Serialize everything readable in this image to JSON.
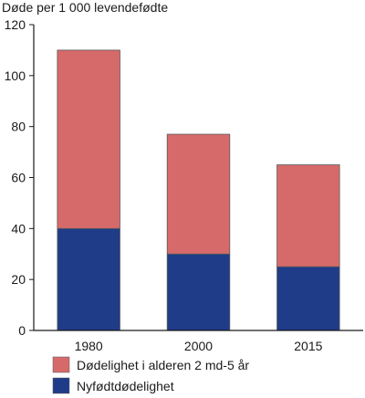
{
  "chart_data": {
    "type": "bar",
    "stacked": true,
    "ylabel": "Døde per 1 000 levendefødte",
    "ylim": [
      0,
      120
    ],
    "yticks": [
      0,
      20,
      40,
      60,
      80,
      100,
      120
    ],
    "categories": [
      "1980",
      "2000",
      "2015"
    ],
    "series": [
      {
        "name": "Nyfødtdødelighet",
        "values": [
          40,
          30,
          25
        ],
        "color": "#1f3c88"
      },
      {
        "name": "Dødelighet i alderen 2 md-5 år",
        "values": [
          70,
          47,
          40
        ],
        "color": "#d66a6a"
      }
    ],
    "legend_order": [
      1,
      0
    ],
    "legend_position": "bottom",
    "grid": false,
    "bar_outline_color": "#5a5a5a",
    "axis_color": "#1a1a1a"
  }
}
